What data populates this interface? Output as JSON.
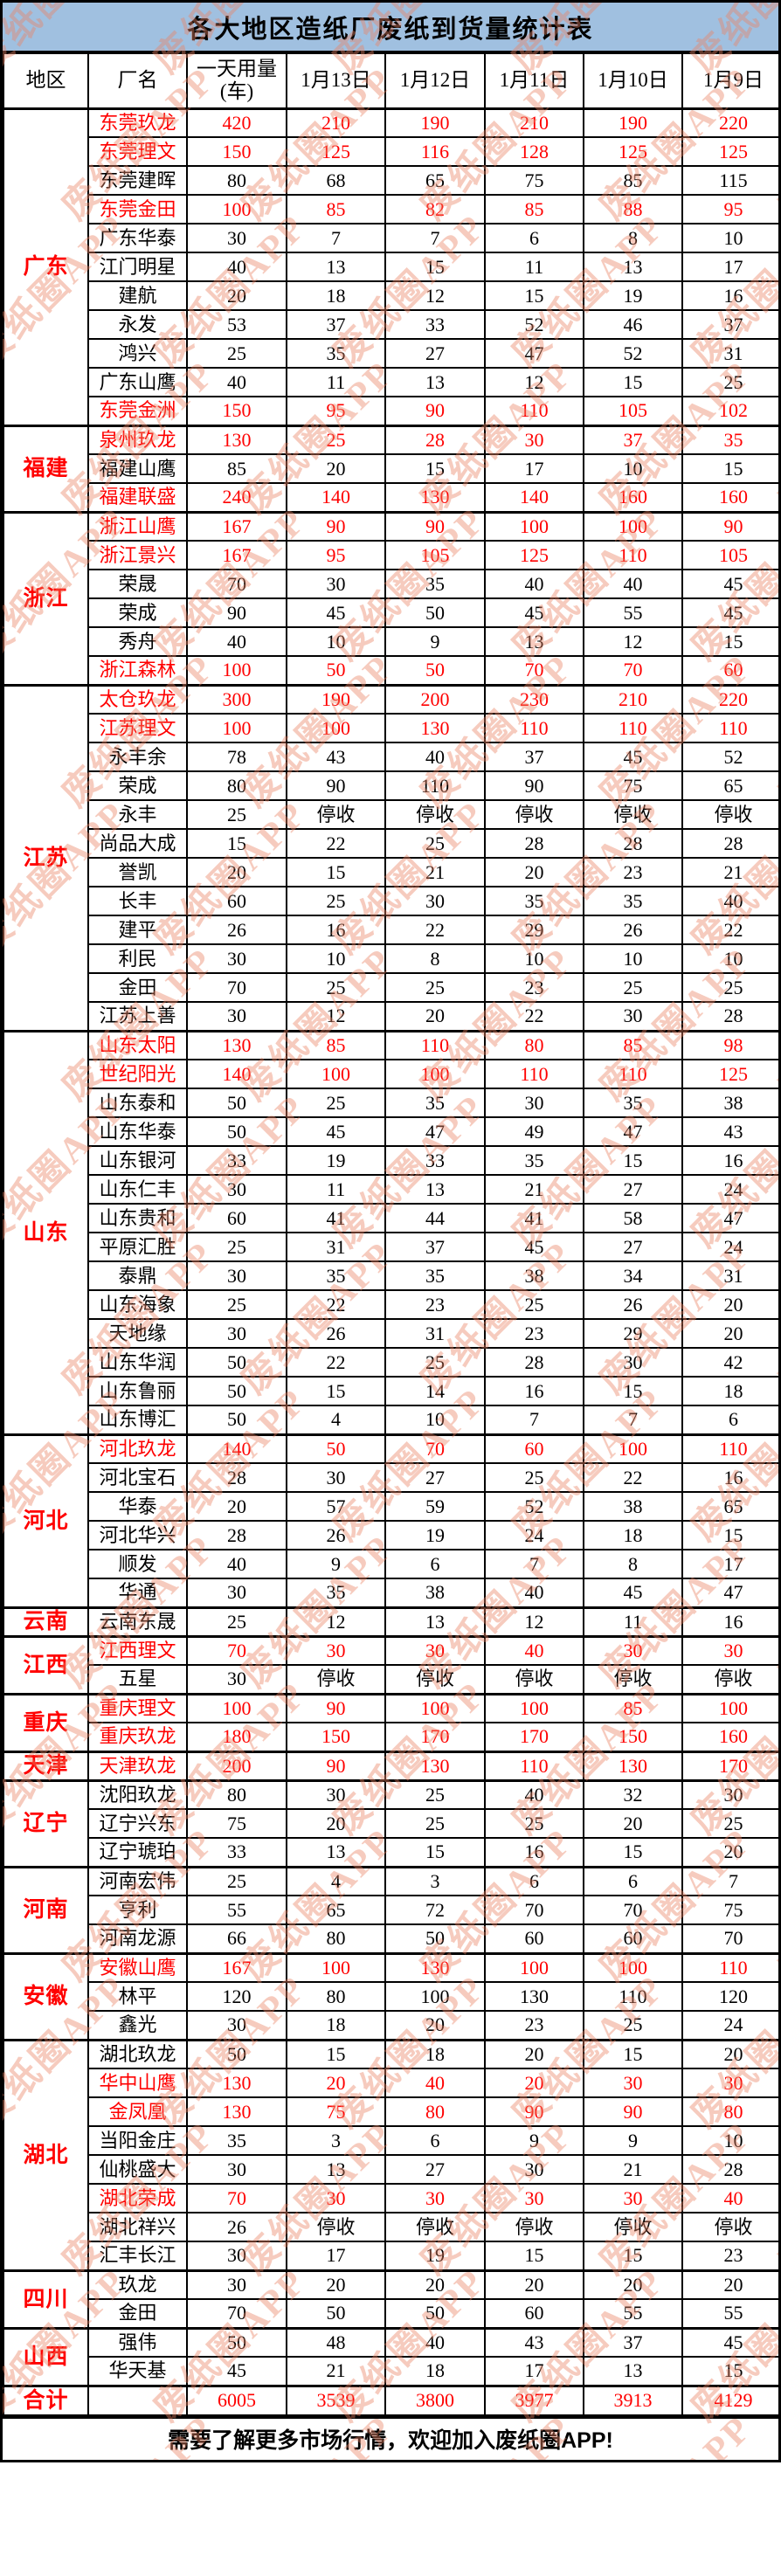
{
  "title": "各大地区造纸厂废纸到货量统计表",
  "columns": [
    "地区",
    "厂名",
    "一天用量\n(车)",
    "1月13日",
    "1月12日",
    "1月11日",
    "1月10日",
    "1月9日"
  ],
  "footer": "需要了解更多市场行情，欢迎加入废纸圈APP!",
  "watermark_text": "废纸圈APP",
  "colors": {
    "title_bg": "#A0C0E0",
    "highlight_red": "#FF0000",
    "watermark": "rgba(233,130,100,0.42)",
    "border": "#000000"
  },
  "regions": [
    {
      "name": "广东",
      "mills": [
        {
          "name": "东莞玖龙",
          "red": true,
          "values": [
            "420",
            "210",
            "190",
            "210",
            "190",
            "220"
          ]
        },
        {
          "name": "东莞理文",
          "red": true,
          "values": [
            "150",
            "125",
            "116",
            "128",
            "125",
            "125"
          ]
        },
        {
          "name": "东莞建晖",
          "red": false,
          "values": [
            "80",
            "68",
            "65",
            "75",
            "85",
            "115"
          ]
        },
        {
          "name": "东莞金田",
          "red": true,
          "values": [
            "100",
            "85",
            "82",
            "85",
            "88",
            "95"
          ]
        },
        {
          "name": "广东华泰",
          "red": false,
          "values": [
            "30",
            "7",
            "7",
            "6",
            "8",
            "10"
          ]
        },
        {
          "name": "江门明星",
          "red": false,
          "values": [
            "40",
            "13",
            "15",
            "11",
            "13",
            "17"
          ]
        },
        {
          "name": "建航",
          "red": false,
          "values": [
            "20",
            "18",
            "12",
            "15",
            "19",
            "16"
          ]
        },
        {
          "name": "永发",
          "red": false,
          "values": [
            "53",
            "37",
            "33",
            "52",
            "46",
            "37"
          ]
        },
        {
          "name": "鸿兴",
          "red": false,
          "values": [
            "25",
            "35",
            "27",
            "47",
            "52",
            "31"
          ]
        },
        {
          "name": "广东山鹰",
          "red": false,
          "values": [
            "40",
            "11",
            "13",
            "12",
            "15",
            "25"
          ]
        },
        {
          "name": "东莞金洲",
          "red": true,
          "values": [
            "150",
            "95",
            "90",
            "110",
            "105",
            "102"
          ]
        }
      ]
    },
    {
      "name": "福建",
      "mills": [
        {
          "name": "泉州玖龙",
          "red": true,
          "values": [
            "130",
            "25",
            "28",
            "30",
            "37",
            "35"
          ]
        },
        {
          "name": "福建山鹰",
          "red": false,
          "values": [
            "85",
            "20",
            "15",
            "17",
            "10",
            "15"
          ]
        },
        {
          "name": "福建联盛",
          "red": true,
          "values": [
            "240",
            "140",
            "130",
            "140",
            "160",
            "160"
          ]
        }
      ]
    },
    {
      "name": "浙江",
      "mills": [
        {
          "name": "浙江山鹰",
          "red": true,
          "values": [
            "167",
            "90",
            "90",
            "100",
            "100",
            "90"
          ]
        },
        {
          "name": "浙江景兴",
          "red": true,
          "values": [
            "167",
            "95",
            "105",
            "125",
            "110",
            "105"
          ]
        },
        {
          "name": "荣晟",
          "red": false,
          "values": [
            "70",
            "30",
            "35",
            "40",
            "40",
            "45"
          ]
        },
        {
          "name": "荣成",
          "red": false,
          "values": [
            "90",
            "45",
            "50",
            "45",
            "55",
            "45"
          ]
        },
        {
          "name": "秀舟",
          "red": false,
          "values": [
            "40",
            "10",
            "9",
            "13",
            "12",
            "15"
          ]
        },
        {
          "name": "浙江森林",
          "red": true,
          "values": [
            "100",
            "50",
            "50",
            "70",
            "70",
            "60"
          ]
        }
      ]
    },
    {
      "name": "江苏",
      "mills": [
        {
          "name": "太仓玖龙",
          "red": true,
          "values": [
            "300",
            "190",
            "200",
            "230",
            "210",
            "220"
          ]
        },
        {
          "name": "江苏理文",
          "red": true,
          "values": [
            "100",
            "100",
            "130",
            "110",
            "110",
            "110"
          ]
        },
        {
          "name": "永丰余",
          "red": false,
          "values": [
            "78",
            "43",
            "40",
            "37",
            "45",
            "52"
          ]
        },
        {
          "name": "荣成",
          "red": false,
          "values": [
            "80",
            "90",
            "110",
            "90",
            "75",
            "65"
          ]
        },
        {
          "name": "永丰",
          "red": false,
          "values": [
            "25",
            "停收",
            "停收",
            "停收",
            "停收",
            "停收"
          ]
        },
        {
          "name": "尚品大成",
          "red": false,
          "values": [
            "15",
            "22",
            "25",
            "28",
            "28",
            "28"
          ]
        },
        {
          "name": "誉凯",
          "red": false,
          "values": [
            "20",
            "15",
            "21",
            "20",
            "23",
            "21"
          ]
        },
        {
          "name": "长丰",
          "red": false,
          "values": [
            "60",
            "25",
            "30",
            "35",
            "35",
            "40"
          ]
        },
        {
          "name": "建平",
          "red": false,
          "values": [
            "26",
            "16",
            "22",
            "29",
            "26",
            "22"
          ]
        },
        {
          "name": "利民",
          "red": false,
          "values": [
            "30",
            "10",
            "8",
            "10",
            "10",
            "10"
          ]
        },
        {
          "name": "金田",
          "red": false,
          "values": [
            "70",
            "25",
            "25",
            "23",
            "25",
            "25"
          ]
        },
        {
          "name": "江苏上善",
          "red": false,
          "values": [
            "30",
            "12",
            "20",
            "22",
            "30",
            "28"
          ]
        }
      ]
    },
    {
      "name": "山东",
      "mills": [
        {
          "name": "山东太阳",
          "red": true,
          "values": [
            "130",
            "85",
            "110",
            "80",
            "85",
            "98"
          ]
        },
        {
          "name": "世纪阳光",
          "red": true,
          "values": [
            "140",
            "100",
            "100",
            "110",
            "110",
            "125"
          ]
        },
        {
          "name": "山东泰和",
          "red": false,
          "values": [
            "50",
            "25",
            "35",
            "30",
            "35",
            "38"
          ]
        },
        {
          "name": "山东华泰",
          "red": false,
          "values": [
            "50",
            "45",
            "47",
            "49",
            "47",
            "43"
          ]
        },
        {
          "name": "山东银河",
          "red": false,
          "values": [
            "33",
            "19",
            "33",
            "35",
            "15",
            "16"
          ]
        },
        {
          "name": "山东仁丰",
          "red": false,
          "values": [
            "30",
            "11",
            "13",
            "21",
            "27",
            "24"
          ]
        },
        {
          "name": "山东贵和",
          "red": false,
          "values": [
            "60",
            "41",
            "44",
            "41",
            "58",
            "47"
          ]
        },
        {
          "name": "平原汇胜",
          "red": false,
          "values": [
            "25",
            "31",
            "37",
            "45",
            "27",
            "24"
          ]
        },
        {
          "name": "泰鼎",
          "red": false,
          "values": [
            "30",
            "35",
            "35",
            "38",
            "34",
            "31"
          ]
        },
        {
          "name": "山东海象",
          "red": false,
          "values": [
            "25",
            "22",
            "23",
            "25",
            "26",
            "20"
          ]
        },
        {
          "name": "天地缘",
          "red": false,
          "values": [
            "30",
            "26",
            "31",
            "23",
            "29",
            "20"
          ]
        },
        {
          "name": "山东华润",
          "red": false,
          "values": [
            "50",
            "22",
            "25",
            "28",
            "30",
            "42"
          ]
        },
        {
          "name": "山东鲁丽",
          "red": false,
          "values": [
            "50",
            "15",
            "14",
            "16",
            "15",
            "18"
          ]
        },
        {
          "name": "山东博汇",
          "red": false,
          "values": [
            "50",
            "4",
            "10",
            "7",
            "7",
            "6"
          ]
        }
      ]
    },
    {
      "name": "河北",
      "mills": [
        {
          "name": "河北玖龙",
          "red": true,
          "values": [
            "140",
            "50",
            "70",
            "60",
            "100",
            "110"
          ]
        },
        {
          "name": "河北宝石",
          "red": false,
          "values": [
            "28",
            "30",
            "27",
            "25",
            "22",
            "16"
          ]
        },
        {
          "name": "华泰",
          "red": false,
          "values": [
            "20",
            "57",
            "59",
            "52",
            "38",
            "65"
          ]
        },
        {
          "name": "河北华兴",
          "red": false,
          "values": [
            "28",
            "26",
            "19",
            "24",
            "18",
            "15"
          ]
        },
        {
          "name": "顺发",
          "red": false,
          "values": [
            "40",
            "9",
            "6",
            "7",
            "8",
            "17"
          ]
        },
        {
          "name": "华通",
          "red": false,
          "values": [
            "30",
            "35",
            "38",
            "40",
            "45",
            "47"
          ]
        }
      ]
    },
    {
      "name": "云南",
      "mills": [
        {
          "name": "云南东晟",
          "red": false,
          "values": [
            "25",
            "12",
            "13",
            "12",
            "11",
            "16"
          ]
        }
      ]
    },
    {
      "name": "江西",
      "mills": [
        {
          "name": "江西理文",
          "red": true,
          "values": [
            "70",
            "30",
            "30",
            "40",
            "30",
            "30"
          ]
        },
        {
          "name": "五星",
          "red": false,
          "values": [
            "30",
            "停收",
            "停收",
            "停收",
            "停收",
            "停收"
          ]
        }
      ]
    },
    {
      "name": "重庆",
      "mills": [
        {
          "name": "重庆理文",
          "red": true,
          "values": [
            "100",
            "90",
            "100",
            "100",
            "85",
            "100"
          ]
        },
        {
          "name": "重庆玖龙",
          "red": true,
          "values": [
            "180",
            "150",
            "170",
            "170",
            "150",
            "160"
          ]
        }
      ]
    },
    {
      "name": "天津",
      "mills": [
        {
          "name": "天津玖龙",
          "red": true,
          "values": [
            "200",
            "90",
            "130",
            "110",
            "130",
            "170"
          ]
        }
      ]
    },
    {
      "name": "辽宁",
      "mills": [
        {
          "name": "沈阳玖龙",
          "red": false,
          "values": [
            "80",
            "30",
            "25",
            "40",
            "32",
            "30"
          ]
        },
        {
          "name": "辽宁兴东",
          "red": false,
          "values": [
            "75",
            "20",
            "25",
            "25",
            "20",
            "25"
          ]
        },
        {
          "name": "辽宁琥珀",
          "red": false,
          "values": [
            "33",
            "13",
            "15",
            "16",
            "15",
            "20"
          ]
        }
      ]
    },
    {
      "name": "河南",
      "mills": [
        {
          "name": "河南宏伟",
          "red": false,
          "values": [
            "25",
            "4",
            "3",
            "6",
            "6",
            "7"
          ]
        },
        {
          "name": "亨利",
          "red": false,
          "values": [
            "55",
            "65",
            "72",
            "70",
            "70",
            "75"
          ]
        },
        {
          "name": "河南龙源",
          "red": false,
          "values": [
            "66",
            "80",
            "50",
            "60",
            "60",
            "70"
          ]
        }
      ]
    },
    {
      "name": "安徽",
      "mills": [
        {
          "name": "安徽山鹰",
          "red": true,
          "values": [
            "167",
            "100",
            "130",
            "100",
            "100",
            "110"
          ]
        },
        {
          "name": "林平",
          "red": false,
          "values": [
            "120",
            "80",
            "100",
            "130",
            "110",
            "120"
          ]
        },
        {
          "name": "鑫光",
          "red": false,
          "values": [
            "30",
            "18",
            "20",
            "23",
            "25",
            "24"
          ]
        }
      ]
    },
    {
      "name": "湖北",
      "mills": [
        {
          "name": "湖北玖龙",
          "red": false,
          "values": [
            "50",
            "15",
            "18",
            "20",
            "15",
            "20"
          ]
        },
        {
          "name": "华中山鹰",
          "red": true,
          "values": [
            "130",
            "20",
            "40",
            "20",
            "30",
            "30"
          ]
        },
        {
          "name": "金凤凰",
          "red": true,
          "values": [
            "130",
            "75",
            "80",
            "90",
            "90",
            "80"
          ]
        },
        {
          "name": "当阳金庄",
          "red": false,
          "values": [
            "35",
            "3",
            "6",
            "9",
            "9",
            "10"
          ]
        },
        {
          "name": "仙桃盛大",
          "red": false,
          "values": [
            "30",
            "13",
            "27",
            "30",
            "21",
            "28"
          ]
        },
        {
          "name": "湖北荣成",
          "red": true,
          "values": [
            "70",
            "30",
            "30",
            "30",
            "30",
            "40"
          ]
        },
        {
          "name": "湖北祥兴",
          "red": false,
          "values": [
            "26",
            "停收",
            "停收",
            "停收",
            "停收",
            "停收"
          ]
        },
        {
          "name": "汇丰长江",
          "red": false,
          "values": [
            "30",
            "17",
            "19",
            "15",
            "15",
            "23"
          ]
        }
      ]
    },
    {
      "name": "四川",
      "mills": [
        {
          "name": "玖龙",
          "red": false,
          "values": [
            "30",
            "20",
            "20",
            "20",
            "20",
            "20"
          ]
        },
        {
          "name": "金田",
          "red": false,
          "values": [
            "70",
            "50",
            "50",
            "60",
            "55",
            "55"
          ]
        }
      ]
    },
    {
      "name": "山西",
      "mills": [
        {
          "name": "强伟",
          "red": false,
          "values": [
            "50",
            "48",
            "40",
            "43",
            "37",
            "45"
          ]
        },
        {
          "name": "华天基",
          "red": false,
          "values": [
            "45",
            "21",
            "18",
            "17",
            "13",
            "15"
          ]
        }
      ]
    }
  ],
  "total": {
    "label": "合计",
    "values": [
      "6005",
      "3539",
      "3800",
      "3977",
      "3913",
      "4129"
    ]
  }
}
